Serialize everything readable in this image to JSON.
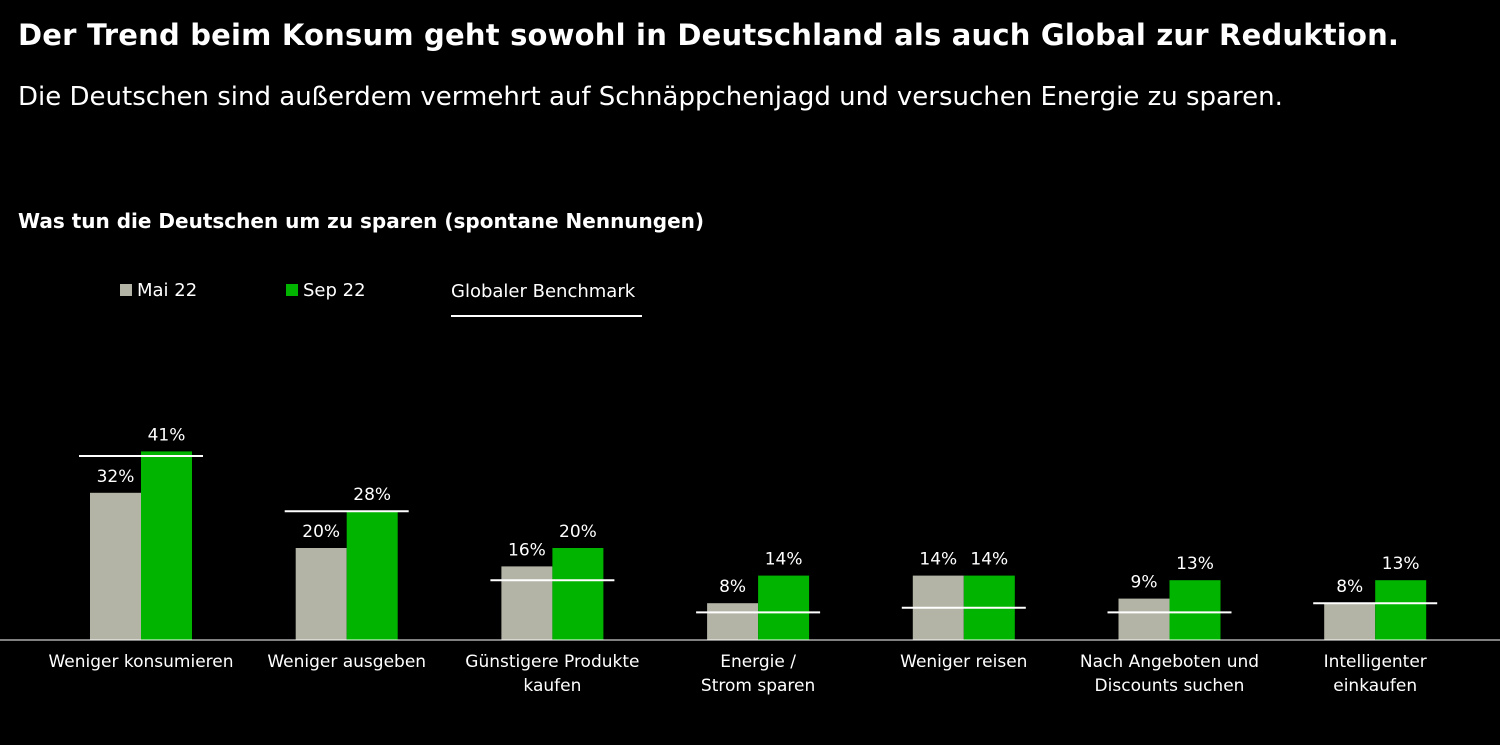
{
  "title": "Der Trend beim Konsum geht sowohl in Deutschland als auch Global zur Reduktion.",
  "subtitle": "Die Deutschen sind außerdem vermehrt auf Schnäppchenjagd und versuchen Energie zu sparen.",
  "colors": {
    "background": "#000000",
    "mai22": "#b3b3a6",
    "sep22": "#00b400",
    "benchmark": "#ffffff"
  },
  "legend": {
    "mai22": "Mai 22",
    "sep22": "Sep 22",
    "benchmark": "Globaler Benchmark"
  },
  "chart_data": {
    "type": "bar",
    "title": "Was tun die Deutschen um zu sparen (spontane Nennungen)",
    "unit": "%",
    "ylim": [
      0,
      45
    ],
    "grid": false,
    "legend_position": "top-left",
    "categories": [
      [
        "Weniger konsumieren"
      ],
      [
        "Weniger ausgeben"
      ],
      [
        "Günstigere Produkte",
        "kaufen"
      ],
      [
        "Energie /",
        "Strom sparen"
      ],
      [
        "Weniger reisen"
      ],
      [
        "Nach Angeboten und",
        "Discounts suchen"
      ],
      [
        "Intelligenter",
        "einkaufen"
      ]
    ],
    "series": [
      {
        "name": "Mai 22",
        "values": [
          32,
          20,
          16,
          8,
          14,
          9,
          8
        ],
        "labels": [
          "32%",
          "20%",
          "16%",
          "8%",
          "14%",
          "9%",
          "8%"
        ]
      },
      {
        "name": "Sep 22",
        "values": [
          41,
          28,
          20,
          14,
          14,
          13,
          13
        ],
        "labels": [
          "41%",
          "28%",
          "20%",
          "14%",
          "14%",
          "13%",
          "13%"
        ]
      }
    ],
    "benchmark": {
      "name": "Globaler Benchmark",
      "values": [
        40,
        28,
        13,
        6,
        7,
        6,
        8
      ]
    }
  }
}
